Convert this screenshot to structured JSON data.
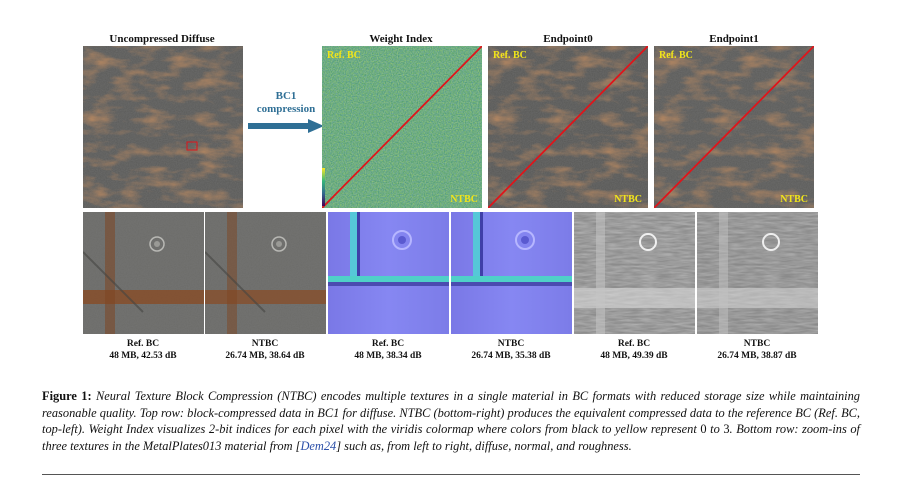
{
  "top_titles": {
    "uncompressed": "Uncompressed Diffuse",
    "weight_index": "Weight Index",
    "endpoint0": "Endpoint0",
    "endpoint1": "Endpoint1"
  },
  "arrow": {
    "line1": "BC1",
    "line2": "compression"
  },
  "overlay_labels": {
    "ref": "Ref. BC",
    "ntbc": "NTBC"
  },
  "bottom_captions": [
    {
      "name": "Ref. BC",
      "stats": "48 MB, 42.53 dB"
    },
    {
      "name": "NTBC",
      "stats": "26.74 MB, 38.64 dB"
    },
    {
      "name": "Ref. BC",
      "stats": "48 MB, 38.34 dB"
    },
    {
      "name": "NTBC",
      "stats": "26.74 MB, 35.38 dB"
    },
    {
      "name": "Ref. BC",
      "stats": "48 MB, 49.39 dB"
    },
    {
      "name": "NTBC",
      "stats": "26.74 MB, 38.87 dB"
    }
  ],
  "caption": {
    "label": "Figure 1:",
    "part1": " Neural Texture Block Compression (NTBC) encodes multiple textures in a single material in BC formats with reduced storage size while maintaining reasonable quality. Top row: block-compressed data in BC1 for diffuse. NTBC (bottom-right) produces the equivalent compressed data to the reference BC (Ref. BC, top-left). Weight Index visualizes 2-bit indices for each pixel with the viridis colormap where colors from black to yellow represent ",
    "zero": "0",
    "mid": " to ",
    "three": "3",
    "part2": ". Bottom row: zoom-ins of three textures in the MetalPlates013 material from [",
    "cite": "Dem24",
    "part3": "] such as, from left to right, diffuse, normal, and roughness."
  },
  "colors": {
    "arrow": "#2f6f95",
    "diagonal": "#e0141a",
    "label_yellow": "#f1e51a",
    "cite": "#2b4fa8"
  }
}
